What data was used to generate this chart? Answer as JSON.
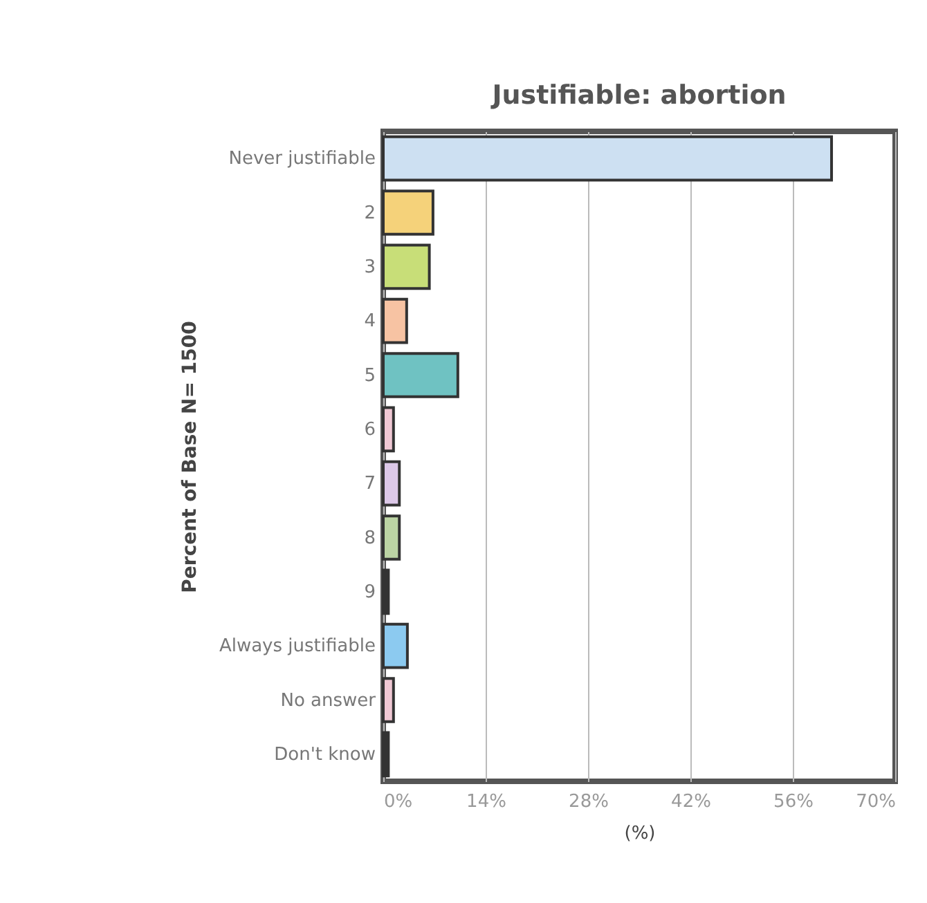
{
  "chart_data": {
    "type": "bar",
    "orientation": "horizontal",
    "title": "Justifiable: abortion",
    "ylabel": "Percent of Base N= 1500",
    "xlabel": "(%)",
    "categories": [
      "Never justifiable",
      "2",
      "3",
      "4",
      "5",
      "6",
      "7",
      "8",
      "9",
      "Always justifiable",
      "No answer",
      "Don't know"
    ],
    "values": [
      61.3,
      6.8,
      6.3,
      3.2,
      10.2,
      1.4,
      2.2,
      2.2,
      0.7,
      3.3,
      1.4,
      0.7
    ],
    "colors": [
      "#cde0f2",
      "#f5d27a",
      "#c8de78",
      "#f7c3a3",
      "#6fc2c2",
      "#f0c8d4",
      "#dcc8e8",
      "#bcd4a4",
      "#333333",
      "#8ccaf0",
      "#f0c8d4",
      "#333333"
    ],
    "xlim": [
      0,
      70
    ],
    "xticks": [
      {
        "value": 0,
        "label": "0%"
      },
      {
        "value": 14,
        "label": "14%"
      },
      {
        "value": 28,
        "label": "28%"
      },
      {
        "value": 42,
        "label": "42%"
      },
      {
        "value": 56,
        "label": "56%"
      },
      {
        "value": 70,
        "label": "70%"
      }
    ],
    "grid": "x"
  }
}
